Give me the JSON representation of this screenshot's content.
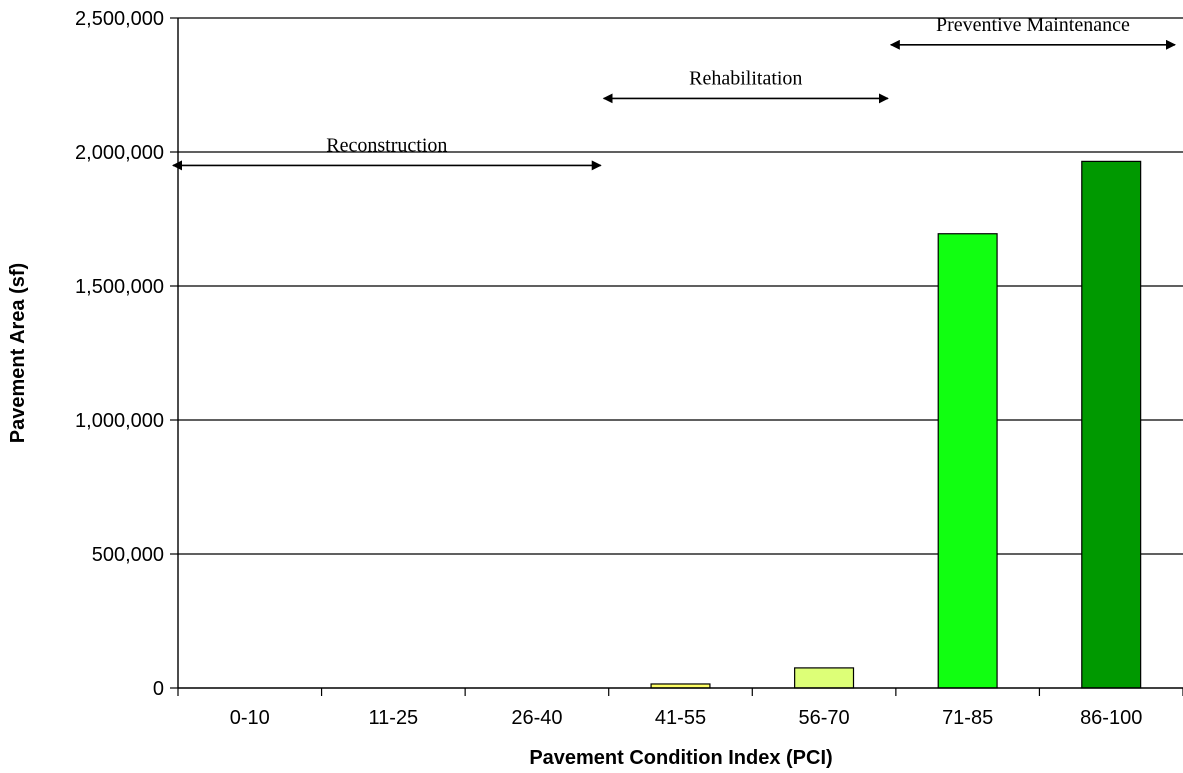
{
  "chart_data": {
    "type": "bar",
    "categories": [
      "0-10",
      "11-25",
      "26-40",
      "41-55",
      "56-70",
      "71-85",
      "86-100"
    ],
    "values": [
      0,
      0,
      0,
      15000,
      75000,
      1695000,
      1965000
    ],
    "bar_colors": [
      "#ffff99",
      "#ffff99",
      "#ffff99",
      "#ffff66",
      "#ddff77",
      "#11ff11",
      "#009900"
    ],
    "xlabel": "Pavement Condition Index (PCI)",
    "ylabel": "Pavement Area (sf)",
    "ylim": [
      0,
      2500000
    ],
    "yticks": [
      0,
      500000,
      1000000,
      1500000,
      2000000,
      2500000
    ],
    "ytick_labels": [
      "0",
      "500,000",
      "1,000,000",
      "1,500,000",
      "2,000,000",
      "2,500,000"
    ],
    "grid": true,
    "annotations": [
      {
        "label": "Reconstruction",
        "from_category": 0,
        "to_category": 2,
        "y": 1950000
      },
      {
        "label": "Rehabilitation",
        "from_category": 3,
        "to_category": 4,
        "y": 2200000
      },
      {
        "label": "Preventive Maintenance",
        "from_category": 5,
        "to_category": 6,
        "y": 2400000
      }
    ]
  }
}
